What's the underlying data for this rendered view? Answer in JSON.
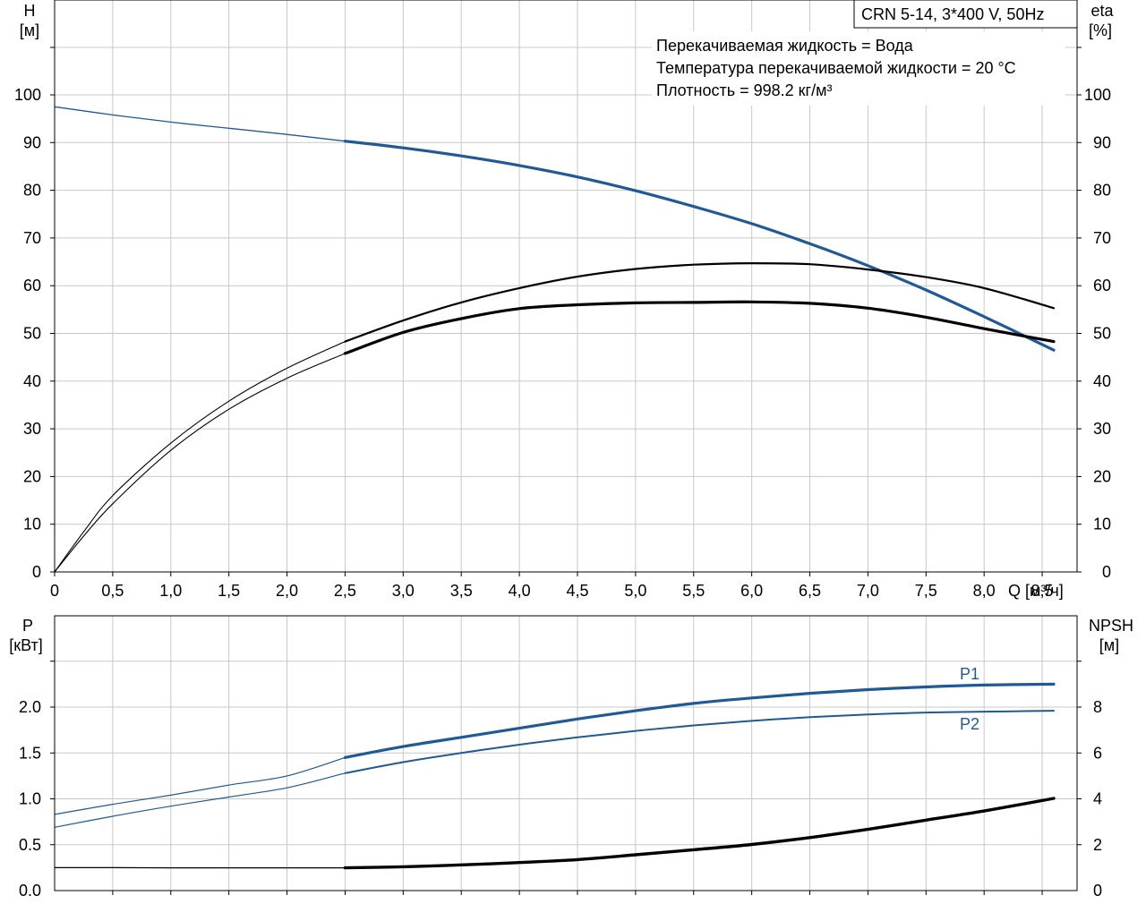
{
  "chart_data": [
    {
      "type": "line",
      "title": "CRN 5-14, 3*400 V, 50Hz",
      "info_lines": [
        "Перекачиваемая жидкость = Вода",
        "Температура перекачиваемой жидкости = 20 °C",
        "Плотность = 998.2 кг/м³"
      ],
      "xlabel": "Q [м³/ч]",
      "ylabel_left": [
        "H",
        "[м]"
      ],
      "ylabel_right": [
        "eta",
        "[%]"
      ],
      "xlim": [
        0,
        8.8
      ],
      "ylim_left": [
        0,
        100
      ],
      "ylim_right": [
        0,
        100
      ],
      "x_ticks": [
        0,
        0.5,
        1.0,
        1.5,
        2.0,
        2.5,
        3.0,
        3.5,
        4.0,
        4.5,
        5.0,
        5.5,
        6.0,
        6.5,
        7.0,
        7.5,
        8.0,
        8.5
      ],
      "x_tick_labels": [
        "0",
        "0,5",
        "1,0",
        "1,5",
        "2,0",
        "2,5",
        "3,0",
        "3,5",
        "4,0",
        "4,5",
        "5,0",
        "5,5",
        "6,0",
        "6,5",
        "7,0",
        "7,5",
        "8,0",
        "8,5"
      ],
      "y_ticks": [
        0,
        10,
        20,
        30,
        40,
        50,
        60,
        70,
        80,
        90,
        100
      ],
      "y_tick_labels": [
        "0",
        "10",
        "20",
        "30",
        "40",
        "50",
        "60",
        "70",
        "80",
        "90",
        "100"
      ],
      "grid": true,
      "series": [
        {
          "key": "H",
          "color": "#1f5a96",
          "axis": "left",
          "start_x": 2.5,
          "x": [
            0,
            0.5,
            1.0,
            1.5,
            2.0,
            2.5,
            3.0,
            3.5,
            4.0,
            4.5,
            5.0,
            5.5,
            6.0,
            6.5,
            7.0,
            7.5,
            8.0,
            8.6
          ],
          "y": [
            97.5,
            95.8,
            94.3,
            93.0,
            91.7,
            90.3,
            88.9,
            87.2,
            85.2,
            82.8,
            79.9,
            76.6,
            73.0,
            68.8,
            64.2,
            59.1,
            53.5,
            46.5
          ]
        },
        {
          "key": "eta",
          "color": "#000000",
          "axis": "right",
          "start_x": 2.5,
          "x": [
            0,
            0.25,
            0.5,
            1.0,
            1.5,
            2.0,
            2.5,
            3.0,
            3.5,
            4.0,
            4.5,
            5.0,
            5.5,
            6.0,
            6.5,
            7.0,
            7.5,
            8.0,
            8.6
          ],
          "y": [
            0,
            7.5,
            14.3,
            25.5,
            34.1,
            40.6,
            45.8,
            50.2,
            53.1,
            55.2,
            56.0,
            56.4,
            56.5,
            56.6,
            56.3,
            55.3,
            53.4,
            51.0,
            48.3
          ]
        },
        {
          "key": "eta_total",
          "color": "#000000",
          "axis": "right",
          "start_x": 2.5,
          "x": [
            0,
            0.25,
            0.5,
            1.0,
            1.5,
            2.0,
            2.5,
            3.0,
            3.5,
            4.0,
            4.5,
            5.0,
            5.5,
            6.0,
            6.5,
            7.0,
            7.5,
            8.0,
            8.6
          ],
          "y": [
            0,
            8.4,
            16.0,
            27.0,
            35.8,
            42.7,
            48.3,
            52.7,
            56.5,
            59.5,
            61.9,
            63.5,
            64.4,
            64.7,
            64.5,
            63.4,
            61.8,
            59.5,
            55.3
          ]
        }
      ]
    },
    {
      "type": "line",
      "ylabel_left": [
        "P",
        "[кВт]"
      ],
      "ylabel_right": [
        "NPSH",
        "[м]"
      ],
      "xlim": [
        0,
        8.8
      ],
      "ylim_left": [
        0,
        2.5
      ],
      "ylim_right": [
        0,
        10
      ],
      "y_ticks_left": [
        0,
        0.5,
        1.0,
        1.5,
        2.0
      ],
      "y_tick_labels_left": [
        "0.0",
        "0.5",
        "1.0",
        "1.5",
        "2.0"
      ],
      "y_ticks_right": [
        0,
        2,
        4,
        6,
        8
      ],
      "y_tick_labels_right": [
        "0",
        "2",
        "4",
        "6",
        "8"
      ],
      "grid": true,
      "series": [
        {
          "key": "P1",
          "name": "P1",
          "color": "#1f5a96",
          "axis": "left",
          "start_x": 2.5,
          "x": [
            0,
            0.5,
            1.0,
            1.5,
            2.0,
            2.5,
            3.0,
            3.5,
            4.0,
            4.5,
            5.0,
            5.5,
            6.0,
            6.5,
            7.0,
            7.5,
            8.0,
            8.6
          ],
          "y": [
            0.83,
            0.94,
            1.04,
            1.15,
            1.25,
            1.45,
            1.57,
            1.67,
            1.77,
            1.87,
            1.96,
            2.04,
            2.1,
            2.15,
            2.19,
            2.22,
            2.24,
            2.25
          ]
        },
        {
          "key": "P2",
          "name": "P2",
          "color": "#1f5a96",
          "axis": "left",
          "start_x": 2.5,
          "x": [
            0,
            0.5,
            1.0,
            1.5,
            2.0,
            2.5,
            3.0,
            3.5,
            4.0,
            4.5,
            5.0,
            5.5,
            6.0,
            6.5,
            7.0,
            7.5,
            8.0,
            8.6
          ],
          "y": [
            0.69,
            0.81,
            0.92,
            1.02,
            1.12,
            1.28,
            1.4,
            1.5,
            1.59,
            1.67,
            1.74,
            1.8,
            1.85,
            1.89,
            1.92,
            1.94,
            1.95,
            1.96
          ]
        },
        {
          "key": "NPSH",
          "color": "#000000",
          "axis": "right",
          "start_x": 2.5,
          "x": [
            0,
            0.5,
            1.0,
            1.5,
            2.0,
            2.5,
            3.0,
            3.5,
            4.0,
            4.5,
            5.0,
            5.5,
            6.0,
            6.5,
            7.0,
            7.5,
            8.0,
            8.6
          ],
          "y": [
            1.0,
            1.0,
            0.99,
            0.99,
            0.99,
            0.99,
            1.04,
            1.12,
            1.22,
            1.35,
            1.56,
            1.78,
            2.01,
            2.31,
            2.67,
            3.07,
            3.47,
            4.02
          ]
        }
      ]
    }
  ]
}
